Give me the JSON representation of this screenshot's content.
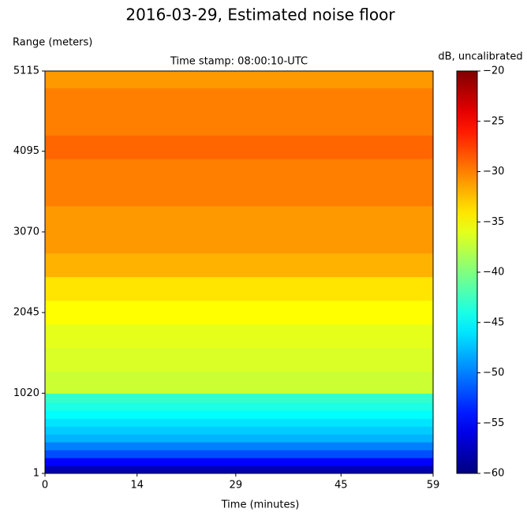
{
  "chart_data": {
    "type": "heatmap",
    "title": "2016-03-29, Estimated noise floor",
    "subtitle": "Time stamp: 08:00:10-UTC",
    "xlabel": "Time (minutes)",
    "ylabel": "Range (meters)",
    "colorbar_label": "dB, uncalibrated",
    "colormap": "jet",
    "xlim": [
      0,
      59
    ],
    "xticks": [
      0,
      14,
      29,
      45,
      59
    ],
    "ylim": [
      1,
      5115
    ],
    "yticks": [
      1,
      1020,
      2045,
      3070,
      4095,
      5115
    ],
    "clim": [
      -60,
      -20
    ],
    "cticks": [
      {
        "value": -60,
        "label": "−60"
      },
      {
        "value": -55,
        "label": "−55"
      },
      {
        "value": -50,
        "label": "−50"
      },
      {
        "value": -45,
        "label": "−45"
      },
      {
        "value": -40,
        "label": "−40"
      },
      {
        "value": -35,
        "label": "−35"
      },
      {
        "value": -30,
        "label": "−30"
      },
      {
        "value": -25,
        "label": "−25"
      },
      {
        "value": -20,
        "label": "−20"
      }
    ],
    "range_bins": [
      1,
      100,
      200,
      300,
      400,
      500,
      600,
      700,
      800,
      900,
      1020,
      1300,
      1600,
      1900,
      2200,
      2500,
      2800,
      3100,
      3400,
      3700,
      4000,
      4300,
      4600,
      4900,
      5115
    ],
    "values": [
      -58,
      -55,
      -52,
      -50,
      -48,
      -47,
      -46,
      -45,
      -44,
      -43,
      -37,
      -36.5,
      -36,
      -35,
      -34,
      -32,
      -31,
      -31,
      -30,
      -30,
      -29,
      -30,
      -30,
      -31
    ]
  }
}
